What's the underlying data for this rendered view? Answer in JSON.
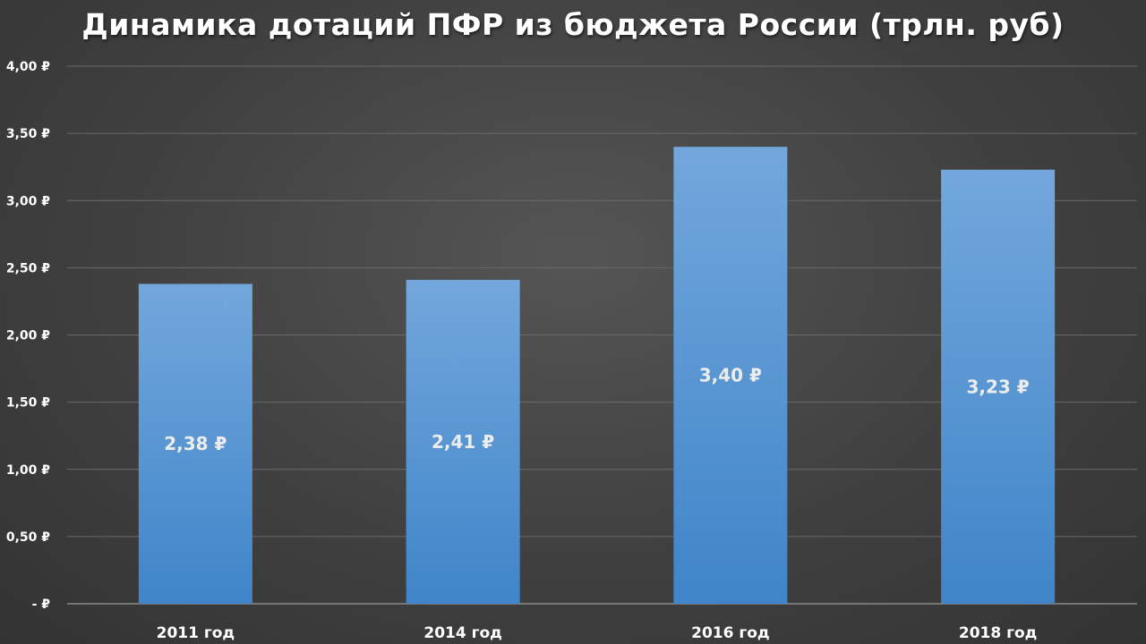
{
  "chart_data": {
    "type": "bar",
    "title": "Динамика дотаций ПФР из бюджета России (трлн. руб)",
    "categories": [
      "2011 год",
      "2014 год",
      "2016 год",
      "2018 год"
    ],
    "values": [
      2.38,
      2.41,
      3.4,
      3.23
    ],
    "data_labels": [
      "2,38 ₽",
      "2,41 ₽",
      "3,40 ₽",
      "3,23 ₽"
    ],
    "ylim": [
      0,
      4
    ],
    "y_ticks": [
      0,
      0.5,
      1.0,
      1.5,
      2.0,
      2.5,
      3.0,
      3.5,
      4.0
    ],
    "y_tick_labels": [
      "-  ₽",
      "0,50 ₽",
      "1,00 ₽",
      "1,50 ₽",
      "2,00 ₽",
      "2,50 ₽",
      "3,00 ₽",
      "3,50 ₽",
      "4,00 ₽"
    ],
    "grid": true,
    "legend": "none",
    "colors": {
      "bar_top": "#73a7dc",
      "bar_bottom": "#3f85c9",
      "grid": "#6a6a6a",
      "text": "#ffffff"
    }
  }
}
